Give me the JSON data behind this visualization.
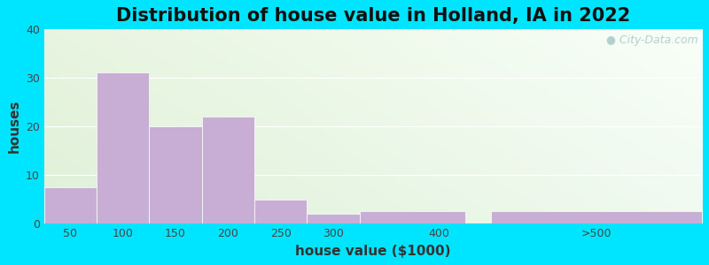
{
  "title": "Distribution of house value in Holland, IA in 2022",
  "xlabel": "house value ($1000)",
  "ylabel": "houses",
  "xtick_labels": [
    "50",
    "100",
    "150",
    "200",
    "250",
    "300",
    "400",
    ">500"
  ],
  "xtick_positions": [
    50,
    100,
    150,
    200,
    250,
    300,
    400,
    550
  ],
  "bar_lefts": [
    25,
    75,
    125,
    175,
    225,
    275,
    325,
    450
  ],
  "bar_widths": [
    50,
    50,
    50,
    50,
    50,
    50,
    100,
    200
  ],
  "bar_values": [
    7.5,
    31,
    20,
    22,
    5,
    2,
    2.5,
    2.5
  ],
  "bar_color": "#c8aed4",
  "bar_edge_color": "#ffffff",
  "ylim": [
    0,
    40
  ],
  "xlim": [
    25,
    650
  ],
  "yticks": [
    0,
    10,
    20,
    30,
    40
  ],
  "background_outer": "#00e5ff",
  "bg_color_topleft": "#e8f5e0",
  "bg_color_topright": "#f5fff5",
  "bg_color_bottomleft": "#f0f8e8",
  "bg_color_bottomright": "#ffffff",
  "title_fontsize": 15,
  "axis_label_fontsize": 11,
  "tick_fontsize": 9,
  "watermark_text": "City-Data.com",
  "watermark_color": "#a8c8c8"
}
